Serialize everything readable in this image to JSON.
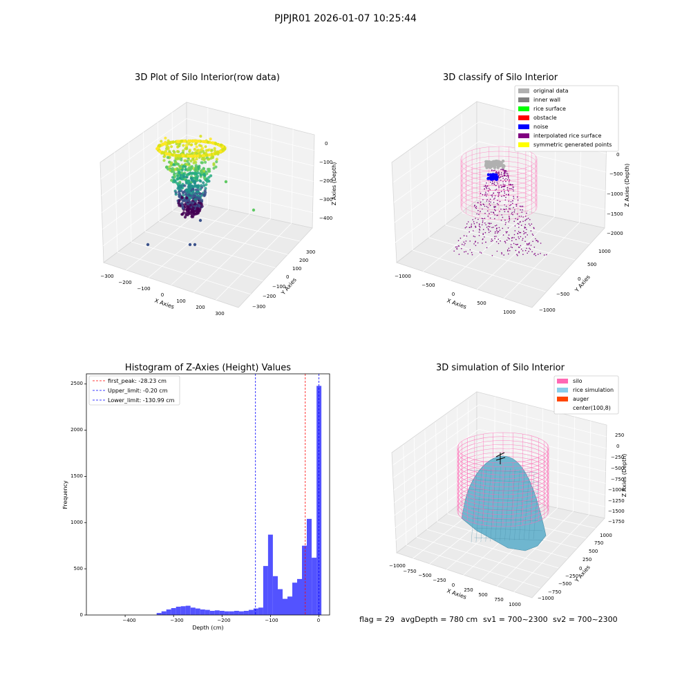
{
  "figure": {
    "suptitle": "PJPJR01 2026-01-07 10:25:44",
    "footer": {
      "flag": "flag = 29",
      "avg_depth": "avgDepth = 780 cm",
      "sv1": "sv1 = 700~2300",
      "sv2": "sv2 = 700~2300"
    }
  },
  "colors": {
    "original_data": "#b0b0b0",
    "inner_wall": "#808080",
    "rice_surface": "#00ff00",
    "obstacle": "#ff0000",
    "noise": "#0000ff",
    "interpolated": "#800080",
    "symmetric": "#ffff00",
    "silo": "#ff69b4",
    "rice_sim": "#87ceeb",
    "auger": "#ff4500",
    "hist_bar": "#4a4aff"
  },
  "chart_data": [
    {
      "type": "scatter",
      "title": "3D Plot of Silo Interior(row data)",
      "xlabel": "X Axies",
      "ylabel": "Y Axies",
      "zlabel": "Z Axies (Depth)",
      "x_ticks": [
        "−300",
        "−200",
        "−100",
        "0",
        "100",
        "200",
        "300"
      ],
      "y_ticks": [
        "−300",
        "−200",
        "−100",
        "0",
        "100",
        "200",
        "300"
      ],
      "z_ticks": [
        "0",
        "−100",
        "−200",
        "−300",
        "−400"
      ]
    },
    {
      "type": "scatter",
      "title": "3D classify of Silo Interior",
      "xlabel": "X Axies",
      "ylabel": "Y Axies",
      "zlabel": "Z Axies (Depth)",
      "x_ticks": [
        "−1000",
        "−500",
        "0",
        "500",
        "1000"
      ],
      "y_ticks": [
        "−1000",
        "−500",
        "0",
        "500",
        "1000"
      ],
      "z_ticks": [
        "0",
        "−500",
        "−1000",
        "−1500",
        "−2000"
      ],
      "legend": [
        "original data",
        "inner wall",
        "rice surface",
        "obstacle",
        "noise",
        "interpolated rice surface",
        "symmetric generated points"
      ]
    },
    {
      "type": "bar",
      "title": "Histogram of Z-Axies (Height) Values",
      "xlabel": "Depth (cm)",
      "ylabel": "Frequency",
      "xlim": [
        -480,
        22
      ],
      "ylim": [
        0,
        2610
      ],
      "x_ticks": [
        "−400",
        "−300",
        "−200",
        "−100",
        "0"
      ],
      "y_ticks": [
        "0",
        "500",
        "1000",
        "1500",
        "2000",
        "2500"
      ],
      "bin_width": 10,
      "bins": [
        [
          -330,
          22
        ],
        [
          -320,
          40
        ],
        [
          -310,
          60
        ],
        [
          -300,
          75
        ],
        [
          -290,
          90
        ],
        [
          -280,
          95
        ],
        [
          -270,
          100
        ],
        [
          -260,
          80
        ],
        [
          -250,
          70
        ],
        [
          -240,
          60
        ],
        [
          -230,
          55
        ],
        [
          -220,
          45
        ],
        [
          -210,
          50
        ],
        [
          -200,
          45
        ],
        [
          -190,
          40
        ],
        [
          -180,
          40
        ],
        [
          -170,
          45
        ],
        [
          -160,
          40
        ],
        [
          -150,
          45
        ],
        [
          -140,
          55
        ],
        [
          -130,
          70
        ],
        [
          -120,
          80
        ],
        [
          -110,
          530
        ],
        [
          -100,
          870
        ],
        [
          -90,
          420
        ],
        [
          -80,
          280
        ],
        [
          -70,
          175
        ],
        [
          -60,
          200
        ],
        [
          -50,
          350
        ],
        [
          -40,
          390
        ],
        [
          -30,
          750
        ],
        [
          -20,
          1040
        ],
        [
          -10,
          620
        ],
        [
          0,
          2480
        ]
      ],
      "lines": [
        {
          "label": "first_peak: -28.23 cm",
          "x": -28.23,
          "color": "#ff0000"
        },
        {
          "label": "Upper_limit: -0.20 cm",
          "x": -0.2,
          "color": "#0000ff"
        },
        {
          "label": "Lower_limit: -130.99 cm",
          "x": -130.99,
          "color": "#0000ff"
        }
      ]
    },
    {
      "type": "scatter",
      "title": "3D simulation of Silo Interior",
      "xlabel": "X Axies",
      "ylabel": "Y Axies",
      "zlabel": "Z Axies (Depth)",
      "x_ticks": [
        "−1000",
        "−750",
        "−500",
        "−250",
        "0",
        "250",
        "500",
        "750",
        "1000"
      ],
      "y_ticks": [
        "−1000",
        "−750",
        "−500",
        "−250",
        "0",
        "250",
        "500",
        "750",
        "1000"
      ],
      "z_ticks": [
        "250",
        "0",
        "−250",
        "−500",
        "−750",
        "−1000",
        "−1250",
        "−1500",
        "−1750"
      ],
      "legend": [
        "silo",
        "rice simulation",
        "auger",
        "center(100,8)"
      ]
    }
  ]
}
